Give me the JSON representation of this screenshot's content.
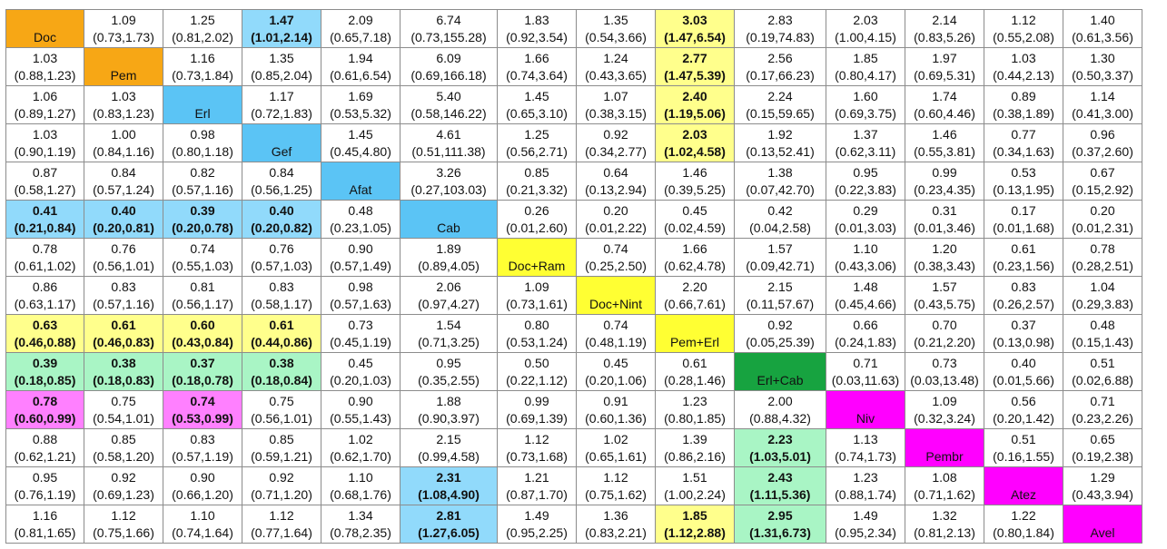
{
  "colors": {
    "orange": "#F7A715",
    "blue": "#5BC4F5",
    "yellow": "#FFFF33",
    "green": "#17A340",
    "magenta": "#FF00FF",
    "light_blue": "#91DAFB",
    "light_yellow": "#FFFF8C",
    "light_green": "#A9F5C5",
    "light_magenta": "#FF80FF",
    "white": "#FFFFFF"
  },
  "table": {
    "treatments": [
      "Doc",
      "Pem",
      "Erl",
      "Gef",
      "Afat",
      "Cab",
      "Doc+Ram",
      "Doc+Nint",
      "Pem+Erl",
      "Erl+Cab",
      "Niv",
      "Pembr",
      "Atez",
      "Avel"
    ],
    "diagonal_colors": [
      "orange",
      "orange",
      "blue",
      "blue",
      "blue",
      "blue",
      "yellow",
      "yellow",
      "yellow",
      "green",
      "magenta",
      "magenta",
      "magenta",
      "magenta"
    ],
    "col_widths": [
      86,
      87,
      87,
      87,
      87,
      107,
      87,
      87,
      87,
      101,
      87,
      87,
      87,
      87
    ],
    "rows": [
      [
        null,
        {
          "v": "1.09",
          "ci": "(0.73,1.73)"
        },
        {
          "v": "1.25",
          "ci": "(0.81,2.02)"
        },
        {
          "v": "1.47",
          "ci": "(1.01,2.14)",
          "b": 1,
          "c": "light_blue"
        },
        {
          "v": "2.09",
          "ci": "(0.65,7.18)"
        },
        {
          "v": "6.74",
          "ci": "(0.73,155.28)"
        },
        {
          "v": "1.83",
          "ci": "(0.92,3.54)"
        },
        {
          "v": "1.35",
          "ci": "(0.54,3.66)"
        },
        {
          "v": "3.03",
          "ci": "(1.47,6.54)",
          "b": 1,
          "c": "light_yellow"
        },
        {
          "v": "2.83",
          "ci": "(0.19,74.83)"
        },
        {
          "v": "2.03",
          "ci": "(1.00,4.15)"
        },
        {
          "v": "2.14",
          "ci": "(0.83,5.26)"
        },
        {
          "v": "1.12",
          "ci": "(0.55,2.08)"
        },
        {
          "v": "1.40",
          "ci": "(0.61,3.56)"
        }
      ],
      [
        {
          "v": "1.03",
          "ci": "(0.88,1.23)"
        },
        null,
        {
          "v": "1.16",
          "ci": "(0.73,1.84)"
        },
        {
          "v": "1.35",
          "ci": "(0.85,2.04)"
        },
        {
          "v": "1.94",
          "ci": "(0.61,6.54)"
        },
        {
          "v": "6.09",
          "ci": "(0.69,166.18)"
        },
        {
          "v": "1.66",
          "ci": "(0.74,3.64)"
        },
        {
          "v": "1.24",
          "ci": "(0.43,3.65)"
        },
        {
          "v": "2.77",
          "ci": "(1.47,5.39)",
          "b": 1,
          "c": "light_yellow"
        },
        {
          "v": "2.56",
          "ci": "(0.17,66.23)"
        },
        {
          "v": "1.85",
          "ci": "(0.80,4.17)"
        },
        {
          "v": "1.97",
          "ci": "(0.69,5.31)"
        },
        {
          "v": "1.03",
          "ci": "(0.44,2.13)"
        },
        {
          "v": "1.30",
          "ci": "(0.50,3.37)"
        }
      ],
      [
        {
          "v": "1.06",
          "ci": "(0.89,1.27)"
        },
        {
          "v": "1.03",
          "ci": "(0.83,1.23)"
        },
        null,
        {
          "v": "1.17",
          "ci": "(0.72,1.83)"
        },
        {
          "v": "1.69",
          "ci": "(0.53,5.32)"
        },
        {
          "v": "5.40",
          "ci": "(0.58,146.22)"
        },
        {
          "v": "1.45",
          "ci": "(0.65,3.10)"
        },
        {
          "v": "1.07",
          "ci": "(0.38,3.15)"
        },
        {
          "v": "2.40",
          "ci": "(1.19,5.06)",
          "b": 1,
          "c": "light_yellow"
        },
        {
          "v": "2.24",
          "ci": "(0.15,59.65)"
        },
        {
          "v": "1.60",
          "ci": "(0.69,3.75)"
        },
        {
          "v": "1.74",
          "ci": "(0.60,4.46)"
        },
        {
          "v": "0.89",
          "ci": "(0.38,1.89)"
        },
        {
          "v": "1.14",
          "ci": "(0.41,3.00)"
        }
      ],
      [
        {
          "v": "1.03",
          "ci": "(0.90,1.19)"
        },
        {
          "v": "1.00",
          "ci": "(0.84,1.16)"
        },
        {
          "v": "0.98",
          "ci": "(0.80,1.18)"
        },
        null,
        {
          "v": "1.45",
          "ci": "(0.45,4.80)"
        },
        {
          "v": "4.61",
          "ci": "(0.51,111.38)"
        },
        {
          "v": "1.25",
          "ci": "(0.56,2.71)"
        },
        {
          "v": "0.92",
          "ci": "(0.34,2.77)"
        },
        {
          "v": "2.03",
          "ci": "(1.02,4.58)",
          "b": 1,
          "c": "light_yellow"
        },
        {
          "v": "1.92",
          "ci": "(0.13,52.41)"
        },
        {
          "v": "1.37",
          "ci": "(0.62,3.11)"
        },
        {
          "v": "1.46",
          "ci": "(0.55,3.81)"
        },
        {
          "v": "0.77",
          "ci": "(0.34,1.63)"
        },
        {
          "v": "0.96",
          "ci": "(0.37,2.60)"
        }
      ],
      [
        {
          "v": "0.87",
          "ci": "(0.58,1.27)"
        },
        {
          "v": "0.84",
          "ci": "(0.57,1.24)"
        },
        {
          "v": "0.82",
          "ci": "(0.57,1.16)"
        },
        {
          "v": "0.84",
          "ci": "(0.56,1.25)"
        },
        null,
        {
          "v": "3.26",
          "ci": "(0.27,103.03)"
        },
        {
          "v": "0.85",
          "ci": "(0.21,3.32)"
        },
        {
          "v": "0.64",
          "ci": "(0.13,2.94)"
        },
        {
          "v": "1.46",
          "ci": "(0.39,5.25)"
        },
        {
          "v": "1.38",
          "ci": "(0.07,42.70)"
        },
        {
          "v": "0.95",
          "ci": "(0.22,3.83)"
        },
        {
          "v": "0.99",
          "ci": "(0.23,4.35)"
        },
        {
          "v": "0.53",
          "ci": "(0.13,1.95)"
        },
        {
          "v": "0.67",
          "ci": "(0.15,2.92)"
        }
      ],
      [
        {
          "v": "0.41",
          "ci": "(0.21,0.84)",
          "b": 1,
          "c": "light_blue"
        },
        {
          "v": "0.40",
          "ci": "(0.20,0.81)",
          "b": 1,
          "c": "light_blue"
        },
        {
          "v": "0.39",
          "ci": "(0.20,0.78)",
          "b": 1,
          "c": "light_blue"
        },
        {
          "v": "0.40",
          "ci": "(0.20,0.82)",
          "b": 1,
          "c": "light_blue"
        },
        {
          "v": "0.48",
          "ci": "(0.23,1.05)"
        },
        null,
        {
          "v": "0.26",
          "ci": "(0.01,2.60)"
        },
        {
          "v": "0.20",
          "ci": "(0.01,2.22)"
        },
        {
          "v": "0.45",
          "ci": "(0.02,4.59)"
        },
        {
          "v": "0.42",
          "ci": "(0.04,2.58)"
        },
        {
          "v": "0.29",
          "ci": "(0.01,3.03)"
        },
        {
          "v": "0.31",
          "ci": "(0.01,3.46)"
        },
        {
          "v": "0.17",
          "ci": "(0.01,1.68)"
        },
        {
          "v": "0.20",
          "ci": "(0.01,2.31)"
        }
      ],
      [
        {
          "v": "0.78",
          "ci": "(0.61,1.02)"
        },
        {
          "v": "0.76",
          "ci": "(0.56,1.01)"
        },
        {
          "v": "0.74",
          "ci": "(0.55,1.03)"
        },
        {
          "v": "0.76",
          "ci": "(0.57,1.03)"
        },
        {
          "v": "0.90",
          "ci": "(0.57,1.49)"
        },
        {
          "v": "1.89",
          "ci": "(0.89,4.05)"
        },
        null,
        {
          "v": "0.74",
          "ci": "(0.25,2.50)"
        },
        {
          "v": "1.66",
          "ci": "(0.62,4.78)"
        },
        {
          "v": "1.57",
          "ci": "(0.09,42.71)"
        },
        {
          "v": "1.10",
          "ci": "(0.43,3.06)"
        },
        {
          "v": "1.20",
          "ci": "(0.38,3.43)"
        },
        {
          "v": "0.61",
          "ci": "(0.23,1.56)"
        },
        {
          "v": "0.78",
          "ci": "(0.28,2.51)"
        }
      ],
      [
        {
          "v": "0.86",
          "ci": "(0.63,1.17)"
        },
        {
          "v": "0.83",
          "ci": "(0.57,1.16)"
        },
        {
          "v": "0.81",
          "ci": "(0.56,1.17)"
        },
        {
          "v": "0.83",
          "ci": "(0.58,1.17)"
        },
        {
          "v": "0.98",
          "ci": "(0.57,1.63)"
        },
        {
          "v": "2.06",
          "ci": "(0.97,4.27)"
        },
        {
          "v": "1.09",
          "ci": "(0.73,1.61)"
        },
        null,
        {
          "v": "2.20",
          "ci": "(0.66,7.61)"
        },
        {
          "v": "2.15",
          "ci": "(0.11,57.67)"
        },
        {
          "v": "1.48",
          "ci": "(0.45,4.66)"
        },
        {
          "v": "1.57",
          "ci": "(0.43,5.75)"
        },
        {
          "v": "0.83",
          "ci": "(0.26,2.57)"
        },
        {
          "v": "1.04",
          "ci": "(0.29,3.83)"
        }
      ],
      [
        {
          "v": "0.63",
          "ci": "(0.46,0.88)",
          "b": 1,
          "c": "light_yellow"
        },
        {
          "v": "0.61",
          "ci": "(0.46,0.83)",
          "b": 1,
          "c": "light_yellow"
        },
        {
          "v": "0.60",
          "ci": "(0.43,0.84)",
          "b": 1,
          "c": "light_yellow"
        },
        {
          "v": "0.61",
          "ci": "(0.44,0.86)",
          "b": 1,
          "c": "light_yellow"
        },
        {
          "v": "0.73",
          "ci": "(0.45,1.19)"
        },
        {
          "v": "1.54",
          "ci": "(0.71,3.25)"
        },
        {
          "v": "0.80",
          "ci": "(0.53,1.24)"
        },
        {
          "v": "0.74",
          "ci": "(0.48,1.19)"
        },
        null,
        {
          "v": "0.92",
          "ci": "(0.05,25.39)"
        },
        {
          "v": "0.66",
          "ci": "(0.24,1.83)"
        },
        {
          "v": "0.70",
          "ci": "(0.21,2.20)"
        },
        {
          "v": "0.37",
          "ci": "(0.13,0.98)"
        },
        {
          "v": "0.48",
          "ci": "(0.15,1.43)"
        }
      ],
      [
        {
          "v": "0.39",
          "ci": "(0.18,0.85)",
          "b": 1,
          "c": "light_green"
        },
        {
          "v": "0.38",
          "ci": "(0.18,0.83)",
          "b": 1,
          "c": "light_green"
        },
        {
          "v": "0.37",
          "ci": "(0.18,0.78)",
          "b": 1,
          "c": "light_green"
        },
        {
          "v": "0.38",
          "ci": "(0.18,0.84)",
          "b": 1,
          "c": "light_green"
        },
        {
          "v": "0.45",
          "ci": "(0.20,1.03)"
        },
        {
          "v": "0.95",
          "ci": "(0.35,2.55)"
        },
        {
          "v": "0.50",
          "ci": "(0.22,1.12)"
        },
        {
          "v": "0.45",
          "ci": "(0.20,1.06)"
        },
        {
          "v": "0.61",
          "ci": "(0.28,1.46)"
        },
        null,
        {
          "v": "0.71",
          "ci": "(0.03,11.63)"
        },
        {
          "v": "0.73",
          "ci": "(0.03,13.48)"
        },
        {
          "v": "0.40",
          "ci": "(0.01,5.66)"
        },
        {
          "v": "0.51",
          "ci": "(0.02,6.88)"
        }
      ],
      [
        {
          "v": "0.78",
          "ci": "(0.60,0.99)",
          "b": 1,
          "c": "light_magenta"
        },
        {
          "v": "0.75",
          "ci": "(0.54,1.01)"
        },
        {
          "v": "0.74",
          "ci": "(0.53,0.99)",
          "b": 1,
          "c": "light_magenta"
        },
        {
          "v": "0.75",
          "ci": "(0.56,1.01)"
        },
        {
          "v": "0.90",
          "ci": "(0.55,1.43)"
        },
        {
          "v": "1.88",
          "ci": "(0.90,3.97)"
        },
        {
          "v": "0.99",
          "ci": "(0.69,1.39)"
        },
        {
          "v": "0.91",
          "ci": "(0.60,1.36)"
        },
        {
          "v": "1.23",
          "ci": "(0.80,1.85)"
        },
        {
          "v": "2.00",
          "ci": "(0.88,4.32)"
        },
        null,
        {
          "v": "1.09",
          "ci": "(0.32,3.24)"
        },
        {
          "v": "0.56",
          "ci": "(0.20,1.42)"
        },
        {
          "v": "0.71",
          "ci": "(0.23,2.26)"
        }
      ],
      [
        {
          "v": "0.88",
          "ci": "(0.62,1.21)"
        },
        {
          "v": "0.85",
          "ci": "(0.58,1.20)"
        },
        {
          "v": "0.83",
          "ci": "(0.57,1.19)"
        },
        {
          "v": "0.85",
          "ci": "(0.59,1.21)"
        },
        {
          "v": "1.02",
          "ci": "(0.62,1.70)"
        },
        {
          "v": "2.15",
          "ci": "(0.99,4.58)"
        },
        {
          "v": "1.12",
          "ci": "(0.73,1.68)"
        },
        {
          "v": "1.02",
          "ci": "(0.65,1.61)"
        },
        {
          "v": "1.39",
          "ci": "(0.86,2.16)"
        },
        {
          "v": "2.23",
          "ci": "(1.03,5.01)",
          "b": 1,
          "c": "light_green"
        },
        {
          "v": "1.13",
          "ci": "(0.74,1.73)"
        },
        null,
        {
          "v": "0.51",
          "ci": "(0.16,1.55)"
        },
        {
          "v": "0.65",
          "ci": "(0.19,2.38)"
        }
      ],
      [
        {
          "v": "0.95",
          "ci": "(0.76,1.19)"
        },
        {
          "v": "0.92",
          "ci": "(0.69,1.23)"
        },
        {
          "v": "0.90",
          "ci": "(0.66,1.20)"
        },
        {
          "v": "0.92",
          "ci": "(0.71,1.20)"
        },
        {
          "v": "1.10",
          "ci": "(0.68,1.76)"
        },
        {
          "v": "2.31",
          "ci": "(1.08,4.90)",
          "b": 1,
          "c": "light_blue"
        },
        {
          "v": "1.21",
          "ci": "(0.87,1.70)"
        },
        {
          "v": "1.12",
          "ci": "(0.75,1.62)"
        },
        {
          "v": "1.51",
          "ci": "(1.00,2.24)"
        },
        {
          "v": "2.43",
          "ci": "(1.11,5.36)",
          "b": 1,
          "c": "light_green"
        },
        {
          "v": "1.23",
          "ci": "(0.88,1.74)"
        },
        {
          "v": "1.08",
          "ci": "(0.71,1.62)"
        },
        null,
        {
          "v": "1.29",
          "ci": "(0.43,3.94)"
        }
      ],
      [
        {
          "v": "1.16",
          "ci": "(0.81,1.65)"
        },
        {
          "v": "1.12",
          "ci": "(0.75,1.66)"
        },
        {
          "v": "1.10",
          "ci": "(0.74,1.64)"
        },
        {
          "v": "1.12",
          "ci": "(0.77,1.64)"
        },
        {
          "v": "1.34",
          "ci": "(0.78,2.35)"
        },
        {
          "v": "2.81",
          "ci": "(1.27,6.05)",
          "b": 1,
          "c": "light_blue"
        },
        {
          "v": "1.49",
          "ci": "(0.95,2.25)"
        },
        {
          "v": "1.36",
          "ci": "(0.83,2.21)"
        },
        {
          "v": "1.85",
          "ci": "(1.12,2.88)",
          "b": 1,
          "c": "light_yellow"
        },
        {
          "v": "2.95",
          "ci": "(1.31,6.73)",
          "b": 1,
          "c": "light_green"
        },
        {
          "v": "1.49",
          "ci": "(0.95,2.34)"
        },
        {
          "v": "1.32",
          "ci": "(0.81,2.13)"
        },
        {
          "v": "1.22",
          "ci": "(0.80,1.84)"
        },
        null
      ]
    ]
  }
}
